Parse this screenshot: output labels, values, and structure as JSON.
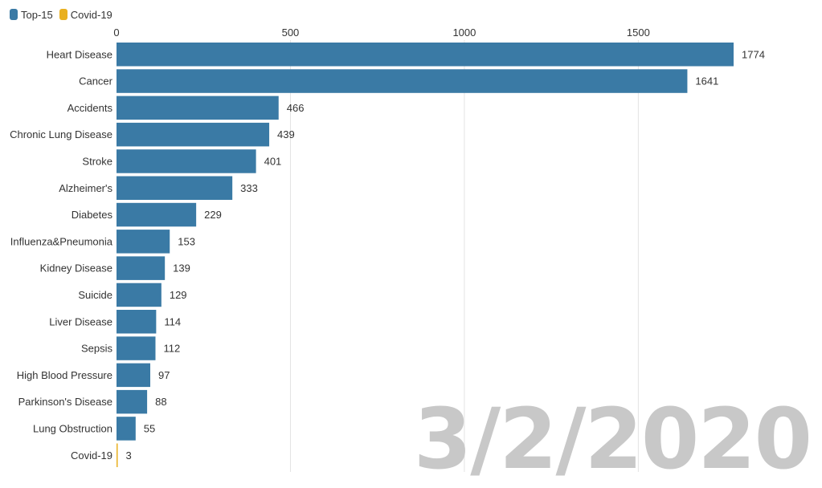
{
  "legend": {
    "items": [
      {
        "label": "Top-15",
        "color": "#3a7aa5"
      },
      {
        "label": "Covid-19",
        "color": "#e9b01f"
      }
    ]
  },
  "date_label": "3/2/2020",
  "colors": {
    "top15": "#3a7aa5",
    "covid": "#e9b01f",
    "grid": "#e3e3e3",
    "date": "#c8c8c8"
  },
  "chart_data": {
    "type": "bar",
    "orientation": "horizontal",
    "categories": [
      "Heart Disease",
      "Cancer",
      "Accidents",
      "Chronic Lung Disease",
      "Stroke",
      "Alzheimer's",
      "Diabetes",
      "Influenza&Pneumonia",
      "Kidney Disease",
      "Suicide",
      "Liver Disease",
      "Sepsis",
      "High Blood Pressure",
      "Parkinson's Disease",
      "Lung Obstruction",
      "Covid-19"
    ],
    "values": [
      1774,
      1641,
      466,
      439,
      401,
      333,
      229,
      153,
      139,
      129,
      114,
      112,
      97,
      88,
      55,
      3
    ],
    "groups": [
      "Top-15",
      "Top-15",
      "Top-15",
      "Top-15",
      "Top-15",
      "Top-15",
      "Top-15",
      "Top-15",
      "Top-15",
      "Top-15",
      "Top-15",
      "Top-15",
      "Top-15",
      "Top-15",
      "Top-15",
      "Covid-19"
    ],
    "x_ticks": [
      0,
      500,
      1000,
      1500
    ],
    "xlim": [
      0,
      1774
    ],
    "grid": true,
    "legend_position": "top-left",
    "title": "",
    "xlabel": "",
    "ylabel": ""
  }
}
